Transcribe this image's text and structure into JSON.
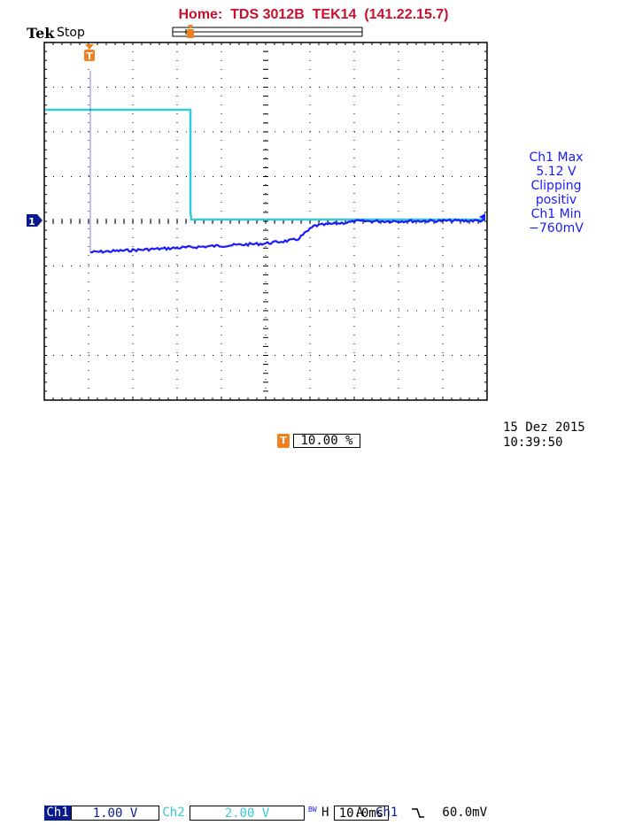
{
  "header": {
    "title": "Home:  TDS 3012B  TEK14  (141.22.15.7)"
  },
  "scope": {
    "logo": "Tek",
    "run_state": "Stop",
    "trigger_marker": "T",
    "ch1_ground_marker": "1"
  },
  "side_readout": {
    "line1": "Ch1 Max",
    "line2": "5.12 V",
    "line3": "Clipping",
    "line4": "positiv",
    "line5": "Ch1 Min",
    "line6": "−760mV"
  },
  "bottom": {
    "ch1_label": "Ch1",
    "ch1_scale": "1.00 V",
    "ch2_label": "Ch2",
    "ch2_scale": "2.00 V",
    "bw_label": "BW",
    "h_label": "H",
    "timebase": "10.0ms",
    "acq_mode": "A",
    "trig_source": "Ch1",
    "trig_slope_icon": "falling-edge-icon",
    "trig_level": "60.0mV",
    "trig_pos_marker": "T",
    "trig_position": "10.00 %"
  },
  "datetime": {
    "date": "15 Dez  2015",
    "time": "10:39:50"
  },
  "colors": {
    "grid": "#000000",
    "ch1": "#1a1aff",
    "ch2": "#36c8d8",
    "trigger": "#f08020",
    "header": "#c8102e",
    "ch1_badge_bg": "#0a1a8c"
  }
}
